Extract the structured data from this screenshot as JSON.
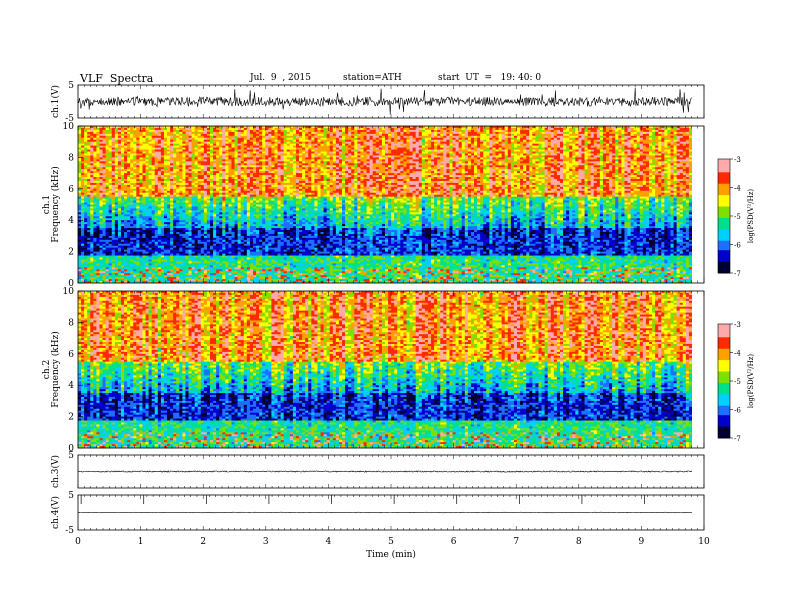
{
  "header": {
    "title": "VLF  Spectra",
    "date": "Jul.  9  , 2015",
    "station": "station=ATH",
    "start": "start  UT  =   19: 40: 0"
  },
  "colors": {
    "spectrum": [
      "#000033",
      "#0000cc",
      "#1f6fff",
      "#00d0ff",
      "#00e08a",
      "#7fe000",
      "#ffff00",
      "#ffa000",
      "#ff2a00",
      "#ffaaaa",
      "#ffffff"
    ]
  },
  "chart_data": [
    {
      "type": "line",
      "name": "ch1-waveform",
      "ylabel": "ch.1(V)",
      "ylim": [
        -5,
        5
      ],
      "yticks": [
        "5",
        "-5"
      ],
      "xlim": [
        0,
        10
      ]
    },
    {
      "type": "heatmap",
      "name": "ch1-spectrogram",
      "ylabel_channel": "ch.1",
      "ylabel": "Frequency  (kHz)",
      "ylim": [
        0,
        10
      ],
      "yticks": [
        "0",
        "2",
        "4",
        "6",
        "8",
        "10"
      ],
      "xlim": [
        0,
        9.8
      ],
      "colorbar": {
        "label": "log(PSD(V²/Hz)",
        "range": [
          -7,
          -3
        ],
        "ticks": [
          "-3",
          "-4",
          "-5",
          "-6",
          "-7"
        ]
      }
    },
    {
      "type": "heatmap",
      "name": "ch2-spectrogram",
      "ylabel_channel": "ch.2",
      "ylabel": "Frequency  (kHz)",
      "ylim": [
        0,
        10
      ],
      "yticks": [
        "0",
        "2",
        "4",
        "6",
        "8",
        "10"
      ],
      "xlim": [
        0,
        9.8
      ],
      "colorbar": {
        "label": "log(PSD(V²/Hz)",
        "range": [
          -7,
          -3
        ],
        "ticks": [
          "-3",
          "-4",
          "-5",
          "-6",
          "-7"
        ]
      }
    },
    {
      "type": "line",
      "name": "ch3-waveform",
      "ylabel": "ch.3(V)",
      "ylim": [
        -5,
        5
      ],
      "yticks": [
        "5"
      ],
      "xlim": [
        0,
        10
      ]
    },
    {
      "type": "line",
      "name": "ch4-waveform",
      "ylabel": "ch.4(V)",
      "ylim": [
        -5,
        5
      ],
      "yticks": [
        "5",
        "-5"
      ],
      "xlim": [
        0,
        10
      ],
      "xlabel": "Time  (min)",
      "xticks": [
        "0",
        "1",
        "2",
        "3",
        "4",
        "5",
        "6",
        "7",
        "8",
        "9",
        "10"
      ]
    }
  ]
}
